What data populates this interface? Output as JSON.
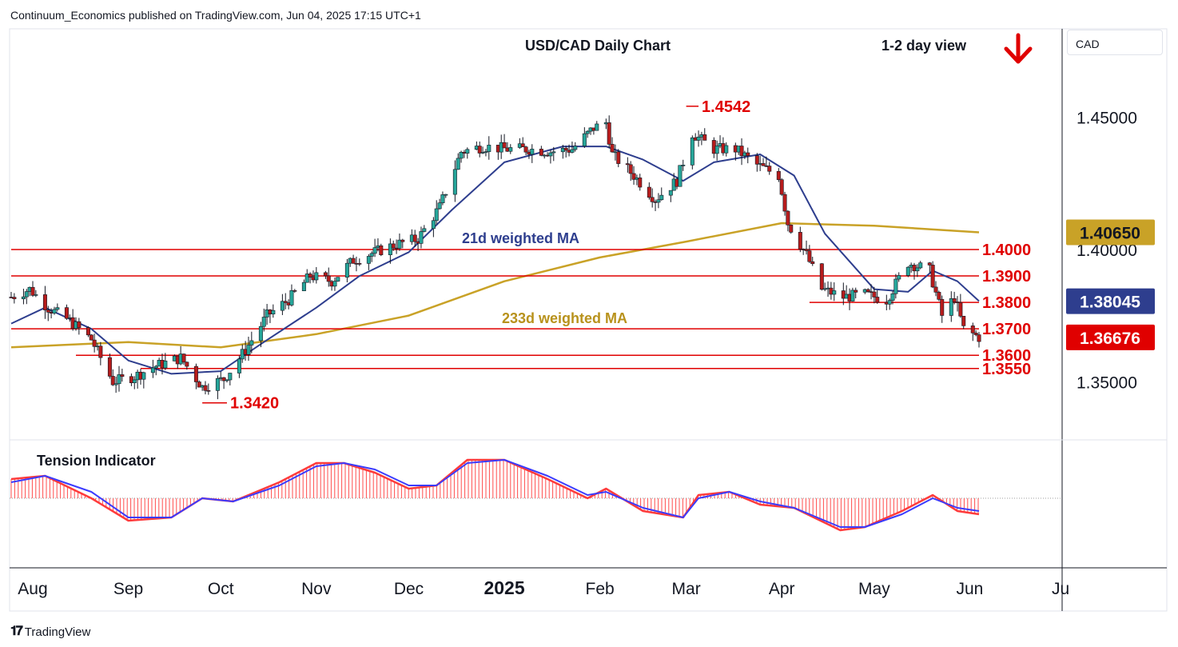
{
  "header": {
    "publisher_line": "Continuum_Economics published on TradingView.com, Jun 04, 2025 17:15 UTC+1"
  },
  "symbol_box": {
    "label": "CAD"
  },
  "footer": {
    "brand": "TradingView"
  },
  "colors": {
    "up": "#26a69a",
    "down": "#b71c1c",
    "candle_edge": "#131722",
    "ma21": "#2e3e8e",
    "ma233": "#c9a227",
    "level": "#e00000",
    "tension_fast": "#ff3b3b",
    "tension_slow": "#3b3bff",
    "hist": "#ff4d4d"
  },
  "chart_data": [
    {
      "type": "candlestick",
      "title": "USD/CAD Daily Chart",
      "subtitle": "1-2 day view",
      "bias_icon": "arrow-down-icon",
      "ylim": [
        1.328,
        1.4835
      ],
      "y_ticks": [
        "1.35000",
        "1.40000",
        "1.45000"
      ],
      "x_ticks": [
        "Aug",
        "Sep",
        "Oct",
        "Nov",
        "Dec",
        "2025",
        "Feb",
        "Mar",
        "Apr",
        "May",
        "Jun",
        "Ju"
      ],
      "x_tick_dates": [
        "2024-08-01",
        "2024-09-01",
        "2024-10-01",
        "2024-11-01",
        "2024-12-01",
        "2025-01-01",
        "2025-02-01",
        "2025-03-01",
        "2025-04-01",
        "2025-05-01",
        "2025-06-01",
        "2025-07-01"
      ],
      "close_path": [
        [
          "2024-07-25",
          1.382
        ],
        [
          "2024-07-31",
          1.385
        ],
        [
          "2024-08-06",
          1.378
        ],
        [
          "2024-08-13",
          1.373
        ],
        [
          "2024-08-20",
          1.366
        ],
        [
          "2024-08-27",
          1.35
        ],
        [
          "2024-09-03",
          1.352
        ],
        [
          "2024-09-10",
          1.356
        ],
        [
          "2024-09-18",
          1.359
        ],
        [
          "2024-09-25",
          1.348
        ],
        [
          "2024-10-02",
          1.351
        ],
        [
          "2024-10-09",
          1.362
        ],
        [
          "2024-10-16",
          1.375
        ],
        [
          "2024-10-23",
          1.381
        ],
        [
          "2024-10-30",
          1.39
        ],
        [
          "2024-11-06",
          1.388
        ],
        [
          "2024-11-13",
          1.396
        ],
        [
          "2024-11-20",
          1.399
        ],
        [
          "2024-11-27",
          1.402
        ],
        [
          "2024-12-04",
          1.404
        ],
        [
          "2024-12-11",
          1.416
        ],
        [
          "2024-12-18",
          1.437
        ],
        [
          "2024-12-25",
          1.439
        ],
        [
          "2025-01-02",
          1.438
        ],
        [
          "2025-01-09",
          1.438
        ],
        [
          "2025-01-16",
          1.437
        ],
        [
          "2025-01-23",
          1.438
        ],
        [
          "2025-01-30",
          1.446
        ],
        [
          "2025-02-03",
          1.448
        ],
        [
          "2025-02-05",
          1.436
        ],
        [
          "2025-02-12",
          1.428
        ],
        [
          "2025-02-19",
          1.419
        ],
        [
          "2025-02-26",
          1.426
        ],
        [
          "2025-03-03",
          1.444
        ],
        [
          "2025-03-10",
          1.438
        ],
        [
          "2025-03-17",
          1.438
        ],
        [
          "2025-03-24",
          1.432
        ],
        [
          "2025-03-31",
          1.428
        ],
        [
          "2025-04-03",
          1.41
        ],
        [
          "2025-04-09",
          1.398
        ],
        [
          "2025-04-14",
          1.385
        ],
        [
          "2025-04-21",
          1.382
        ],
        [
          "2025-04-28",
          1.383
        ],
        [
          "2025-05-05",
          1.381
        ],
        [
          "2025-05-12",
          1.395
        ],
        [
          "2025-05-19",
          1.392
        ],
        [
          "2025-05-23",
          1.375
        ],
        [
          "2025-05-27",
          1.382
        ],
        [
          "2025-05-30",
          1.37
        ],
        [
          "2025-06-04",
          1.3668
        ]
      ],
      "ma21_path": [
        [
          "2024-07-25",
          1.372
        ],
        [
          "2024-08-05",
          1.378
        ],
        [
          "2024-08-20",
          1.37
        ],
        [
          "2024-09-01",
          1.358
        ],
        [
          "2024-09-15",
          1.353
        ],
        [
          "2024-10-01",
          1.354
        ],
        [
          "2024-10-15",
          1.365
        ],
        [
          "2024-11-01",
          1.378
        ],
        [
          "2024-11-15",
          1.39
        ],
        [
          "2024-12-01",
          1.399
        ],
        [
          "2024-12-15",
          1.415
        ],
        [
          "2025-01-01",
          1.433
        ],
        [
          "2025-01-20",
          1.439
        ],
        [
          "2025-02-03",
          1.439
        ],
        [
          "2025-02-15",
          1.434
        ],
        [
          "2025-02-28",
          1.426
        ],
        [
          "2025-03-10",
          1.433
        ],
        [
          "2025-03-25",
          1.436
        ],
        [
          "2025-04-05",
          1.428
        ],
        [
          "2025-04-15",
          1.406
        ],
        [
          "2025-05-01",
          1.385
        ],
        [
          "2025-05-12",
          1.384
        ],
        [
          "2025-05-20",
          1.392
        ],
        [
          "2025-05-28",
          1.388
        ],
        [
          "2025-06-04",
          1.3805
        ]
      ],
      "ma233_path": [
        [
          "2024-07-25",
          1.363
        ],
        [
          "2024-09-01",
          1.365
        ],
        [
          "2024-10-01",
          1.363
        ],
        [
          "2024-11-01",
          1.368
        ],
        [
          "2024-12-01",
          1.375
        ],
        [
          "2025-01-01",
          1.388
        ],
        [
          "2025-02-01",
          1.397
        ],
        [
          "2025-03-01",
          1.403
        ],
        [
          "2025-04-01",
          1.41
        ],
        [
          "2025-05-01",
          1.409
        ],
        [
          "2025-06-04",
          1.4065
        ]
      ],
      "levels": [
        {
          "label": "1.4542",
          "value": 1.4542,
          "from": "2025-03-01",
          "to": "2025-03-05"
        },
        {
          "label": "1.4000",
          "value": 1.4,
          "from": "2024-07-25",
          "to": "2025-06-04"
        },
        {
          "label": "1.3900",
          "value": 1.39,
          "from": "2024-07-25",
          "to": "2025-06-04"
        },
        {
          "label": "1.3800",
          "value": 1.38,
          "from": "2025-04-10",
          "to": "2025-06-04"
        },
        {
          "label": "1.3700",
          "value": 1.37,
          "from": "2024-07-25",
          "to": "2025-06-04"
        },
        {
          "label": "1.3600",
          "value": 1.36,
          "from": "2024-08-15",
          "to": "2025-06-04"
        },
        {
          "label": "1.3550",
          "value": 1.355,
          "from": "2024-09-05",
          "to": "2025-06-04"
        },
        {
          "label": "1.3420",
          "value": 1.342,
          "from": "2024-09-25",
          "to": "2024-10-03"
        }
      ],
      "annotations": [
        {
          "text": "21d weighted MA",
          "color": "ma21"
        },
        {
          "text": "233d weighted MA",
          "color": "ma233"
        }
      ],
      "price_badges": [
        {
          "value": "1.40650",
          "bg": "#c9a227",
          "fg": "#131722"
        },
        {
          "value": "1.38045",
          "bg": "#2e3e8e",
          "fg": "#ffffff"
        },
        {
          "value": "1.36676",
          "bg": "#e00000",
          "fg": "#ffffff"
        }
      ]
    },
    {
      "type": "line",
      "title": "Tension Indicator",
      "series_fast": [
        [
          "2024-07-25",
          0.6
        ],
        [
          "2024-08-05",
          0.7
        ],
        [
          "2024-08-20",
          0.0
        ],
        [
          "2024-09-01",
          -0.7
        ],
        [
          "2024-09-15",
          -0.6
        ],
        [
          "2024-09-25",
          0.0
        ],
        [
          "2024-10-05",
          -0.1
        ],
        [
          "2024-10-20",
          0.5
        ],
        [
          "2024-11-01",
          1.1
        ],
        [
          "2024-11-10",
          1.1
        ],
        [
          "2024-11-20",
          0.8
        ],
        [
          "2024-12-01",
          0.3
        ],
        [
          "2024-12-10",
          0.4
        ],
        [
          "2024-12-20",
          1.2
        ],
        [
          "2025-01-01",
          1.2
        ],
        [
          "2025-01-15",
          0.6
        ],
        [
          "2025-01-28",
          0.0
        ],
        [
          "2025-02-03",
          0.3
        ],
        [
          "2025-02-15",
          -0.4
        ],
        [
          "2025-02-28",
          -0.6
        ],
        [
          "2025-03-05",
          0.1
        ],
        [
          "2025-03-15",
          0.2
        ],
        [
          "2025-03-25",
          -0.2
        ],
        [
          "2025-04-05",
          -0.3
        ],
        [
          "2025-04-20",
          -1.0
        ],
        [
          "2025-04-28",
          -0.9
        ],
        [
          "2025-05-10",
          -0.4
        ],
        [
          "2025-05-20",
          0.1
        ],
        [
          "2025-05-28",
          -0.4
        ],
        [
          "2025-06-04",
          -0.5
        ]
      ],
      "series_slow": [
        [
          "2024-07-25",
          0.5
        ],
        [
          "2024-08-05",
          0.7
        ],
        [
          "2024-08-20",
          0.2
        ],
        [
          "2024-09-01",
          -0.6
        ],
        [
          "2024-09-15",
          -0.6
        ],
        [
          "2024-09-25",
          0.0
        ],
        [
          "2024-10-05",
          -0.1
        ],
        [
          "2024-10-20",
          0.4
        ],
        [
          "2024-11-01",
          1.0
        ],
        [
          "2024-11-10",
          1.1
        ],
        [
          "2024-11-20",
          0.9
        ],
        [
          "2024-12-01",
          0.4
        ],
        [
          "2024-12-10",
          0.4
        ],
        [
          "2024-12-20",
          1.1
        ],
        [
          "2025-01-01",
          1.2
        ],
        [
          "2025-01-15",
          0.7
        ],
        [
          "2025-01-28",
          0.1
        ],
        [
          "2025-02-03",
          0.2
        ],
        [
          "2025-02-15",
          -0.3
        ],
        [
          "2025-02-28",
          -0.6
        ],
        [
          "2025-03-05",
          0.0
        ],
        [
          "2025-03-15",
          0.2
        ],
        [
          "2025-03-25",
          -0.1
        ],
        [
          "2025-04-05",
          -0.3
        ],
        [
          "2025-04-20",
          -0.9
        ],
        [
          "2025-04-28",
          -0.9
        ],
        [
          "2025-05-10",
          -0.5
        ],
        [
          "2025-05-20",
          0.0
        ],
        [
          "2025-05-28",
          -0.3
        ],
        [
          "2025-06-04",
          -0.4
        ]
      ]
    }
  ]
}
